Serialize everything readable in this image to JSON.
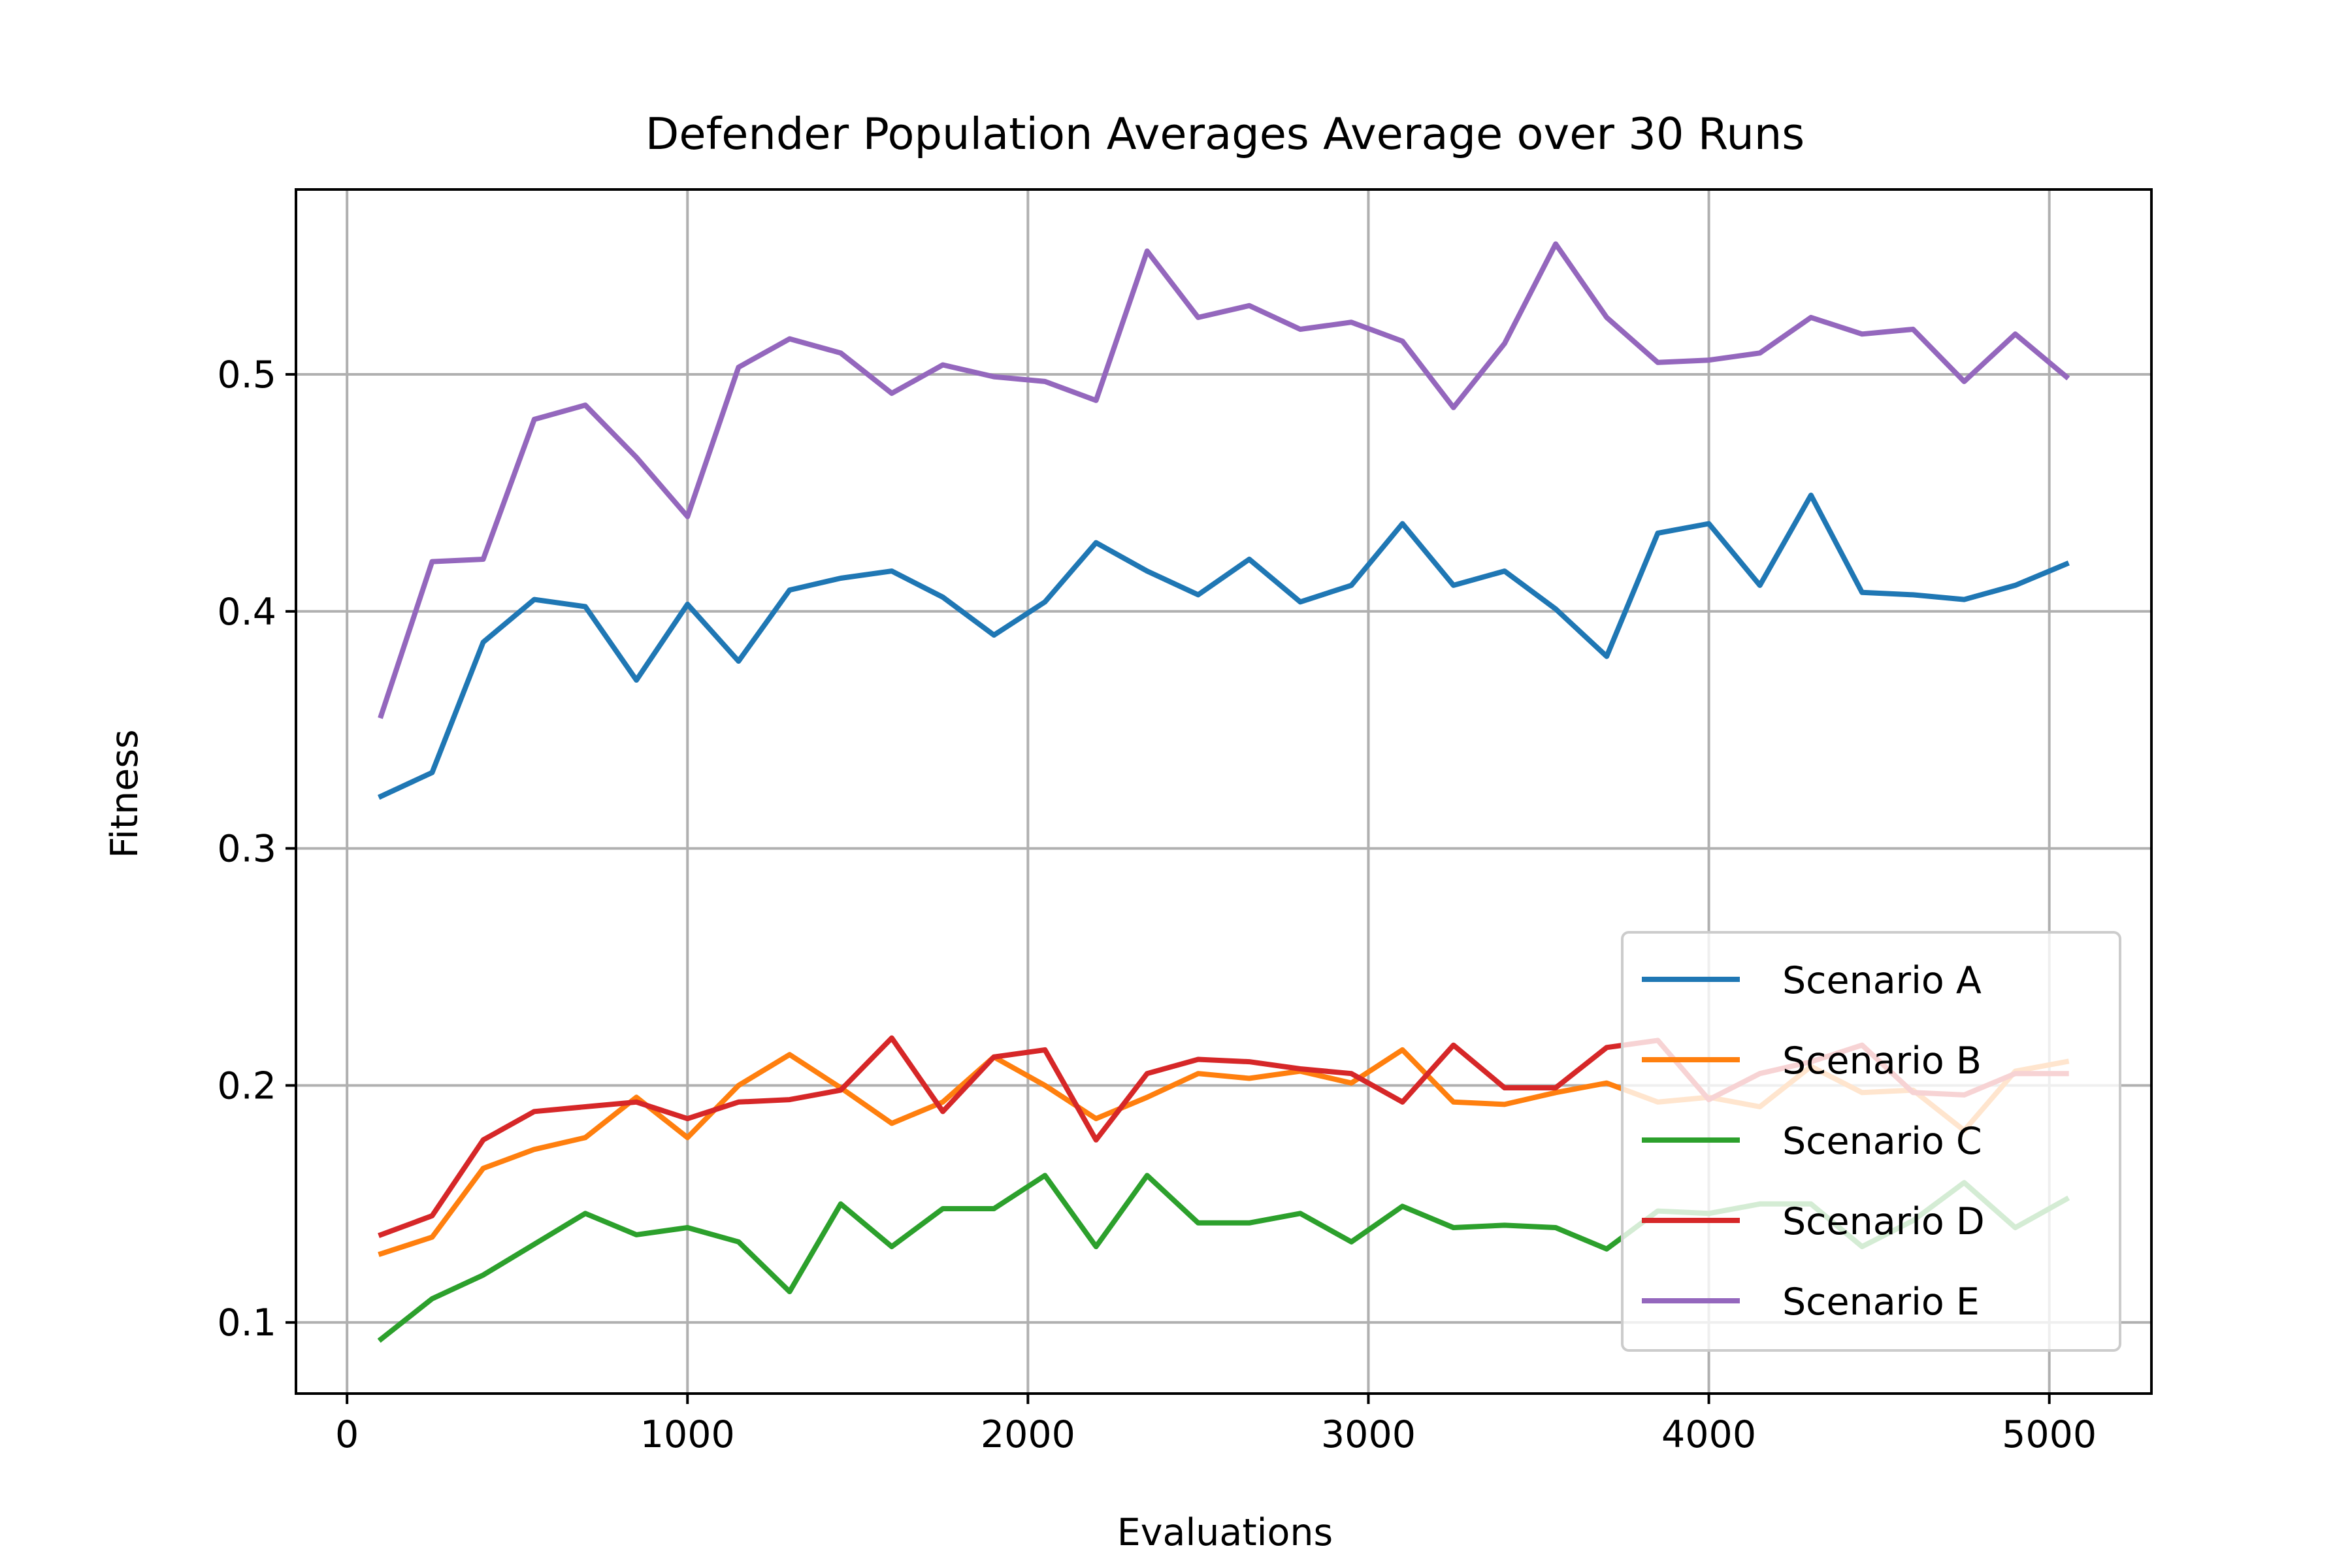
{
  "chart_data": {
    "type": "line",
    "title": "Defender Population Averages Average over 30 Runs",
    "xlabel": "Evaluations",
    "ylabel": "Fitness",
    "xlim": [
      -150,
      5300
    ],
    "ylim": [
      0.07,
      0.578
    ],
    "xticks": [
      0,
      1000,
      2000,
      3000,
      4000,
      5000
    ],
    "yticks": [
      0.1,
      0.2,
      0.3,
      0.4,
      0.5
    ],
    "xtick_labels": [
      "0",
      "1000",
      "2000",
      "3000",
      "4000",
      "5000"
    ],
    "ytick_labels": [
      "0.1",
      "0.2",
      "0.3",
      "0.4",
      "0.5"
    ],
    "grid": true,
    "legend_position": "lower right",
    "x": [
      100,
      250,
      400,
      550,
      700,
      850,
      1000,
      1150,
      1300,
      1450,
      1600,
      1750,
      1900,
      2050,
      2200,
      2350,
      2500,
      2650,
      2800,
      2950,
      3100,
      3250,
      3400,
      3550,
      3700,
      3850,
      4000,
      4150,
      4300,
      4450,
      4600,
      4750,
      4900,
      5050
    ],
    "series": [
      {
        "name": "Scenario A",
        "color": "#1f77b4",
        "values": [
          0.322,
          0.332,
          0.387,
          0.405,
          0.402,
          0.371,
          0.403,
          0.379,
          0.409,
          0.414,
          0.417,
          0.406,
          0.39,
          0.404,
          0.429,
          0.417,
          0.407,
          0.422,
          0.404,
          0.411,
          0.437,
          0.411,
          0.417,
          0.401,
          0.381,
          0.433,
          0.437,
          0.411,
          0.449,
          0.408,
          0.407,
          0.405,
          0.411,
          0.42
        ]
      },
      {
        "name": "Scenario B",
        "color": "#ff7f0e",
        "values": [
          0.129,
          0.136,
          0.165,
          0.173,
          0.178,
          0.195,
          0.178,
          0.2,
          0.213,
          0.199,
          0.184,
          0.193,
          0.212,
          0.2,
          0.186,
          0.195,
          0.205,
          0.203,
          0.206,
          0.201,
          0.215,
          0.193,
          0.192,
          0.197,
          0.201,
          0.193,
          0.195,
          0.191,
          0.208,
          0.197,
          0.198,
          0.181,
          0.206,
          0.21
        ]
      },
      {
        "name": "Scenario C",
        "color": "#2ca02c",
        "values": [
          0.093,
          0.11,
          0.12,
          0.133,
          0.146,
          0.137,
          0.14,
          0.134,
          0.113,
          0.15,
          0.132,
          0.148,
          0.148,
          0.162,
          0.132,
          0.162,
          0.142,
          0.142,
          0.146,
          0.134,
          0.149,
          0.14,
          0.141,
          0.14,
          0.131,
          0.147,
          0.146,
          0.15,
          0.15,
          0.132,
          0.143,
          0.159,
          0.14,
          0.152
        ]
      },
      {
        "name": "Scenario D",
        "color": "#d62728",
        "values": [
          0.137,
          0.145,
          0.177,
          0.189,
          0.191,
          0.193,
          0.186,
          0.193,
          0.194,
          0.198,
          0.22,
          0.189,
          0.212,
          0.215,
          0.177,
          0.205,
          0.211,
          0.21,
          0.207,
          0.205,
          0.193,
          0.217,
          0.199,
          0.199,
          0.216,
          0.219,
          0.194,
          0.205,
          0.21,
          0.217,
          0.197,
          0.196,
          0.205,
          0.205
        ]
      },
      {
        "name": "Scenario E",
        "color": "#9467bd",
        "values": [
          0.356,
          0.421,
          0.422,
          0.481,
          0.487,
          0.465,
          0.44,
          0.503,
          0.515,
          0.509,
          0.492,
          0.504,
          0.499,
          0.497,
          0.489,
          0.552,
          0.524,
          0.529,
          0.519,
          0.522,
          0.514,
          0.486,
          0.513,
          0.555,
          0.524,
          0.505,
          0.506,
          0.509,
          0.524,
          0.517,
          0.519,
          0.497,
          0.517,
          0.499
        ]
      }
    ]
  }
}
